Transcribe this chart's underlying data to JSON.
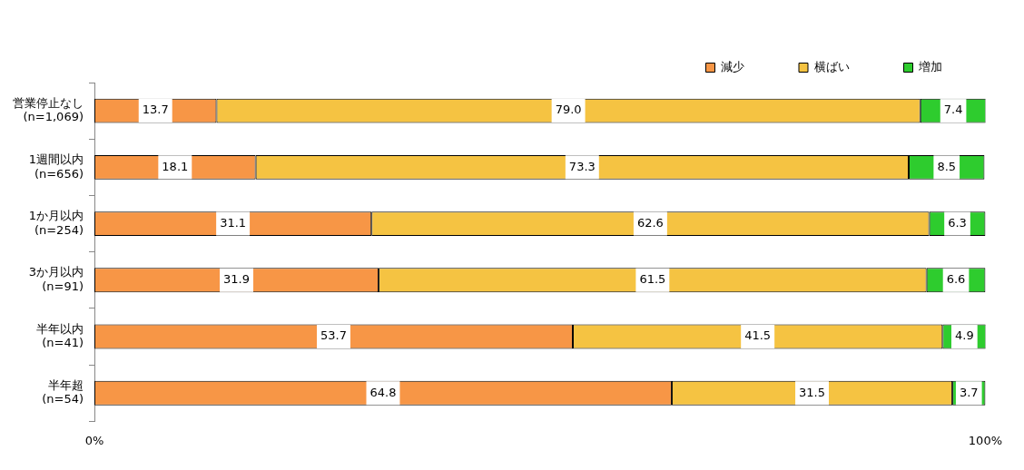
{
  "chart_data": {
    "type": "bar",
    "orientation": "horizontal",
    "stacked": true,
    "categories": [
      "営業停止なし\n(n=1,069)",
      "1週間以内\n(n=656)",
      "1か月以内\n(n=254)",
      "3か月以内\n(n=91)",
      "半年以内\n(n=41)",
      "半年超\n(n=54)"
    ],
    "series": [
      {
        "name": "減少",
        "color": "#f79646",
        "values": [
          13.7,
          18.1,
          31.1,
          31.9,
          53.7,
          64.8
        ],
        "value_labels": [
          "13.7",
          "18.1",
          "31.1",
          "31.9",
          "53.7",
          "64.8"
        ]
      },
      {
        "name": "横ばい",
        "color": "#f5c342",
        "values": [
          79.0,
          73.3,
          62.6,
          61.5,
          41.5,
          31.5
        ],
        "value_labels": [
          "79.0",
          "73.3",
          "62.6",
          "61.5",
          "41.5",
          "31.5"
        ]
      },
      {
        "name": "増加",
        "color": "#2ecc2e",
        "values": [
          7.4,
          8.5,
          6.3,
          6.6,
          4.9,
          3.7
        ],
        "value_labels": [
          "7.4",
          "8.5",
          "6.3",
          "6.6",
          "4.9",
          "3.7"
        ]
      }
    ],
    "xlim": [
      0,
      100
    ],
    "xticks": [
      {
        "value": 0,
        "label": "0%"
      },
      {
        "value": 100,
        "label": "100%"
      }
    ],
    "legend": "top right",
    "grid": false
  }
}
